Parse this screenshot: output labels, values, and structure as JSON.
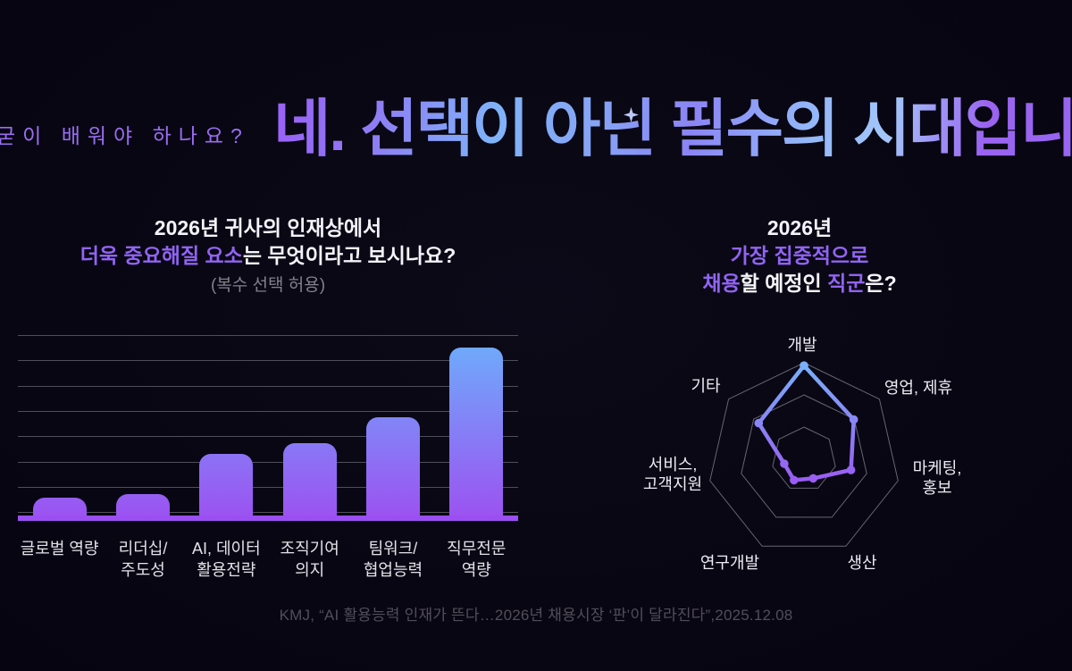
{
  "page": {
    "question": "굳이 배워야 하나요?",
    "title": "네. 선택이 아닌 필수의 시대입니다!",
    "source": "KMJ, “AI 활용능력 인재가 뜬다…2026년 채용시장 ‘판’이 달라진다”,2025.12.08"
  },
  "colors": {
    "accent_purple": "#9164f3",
    "bar_gradient_bottom": "#9c52f1",
    "bar_gradient_top": "#6faafb",
    "baseline": "#9b4ff2",
    "gridline": "#4e4e58",
    "radar_ring": "#666671",
    "radar_line_top": "#78b1f9",
    "radar_line_bottom": "#9a5bf2",
    "title_gradient": [
      "#9b5ff6",
      "#7fb3f9",
      "#8b85f4",
      "#a3c6fa",
      "#9766f0"
    ]
  },
  "bar_section": {
    "title_line1": "2026년 귀사의 인재상에서",
    "title_line2_accent": "더욱 중요해질 요소",
    "title_line2_rest": "는 무엇이라고 보시나요?",
    "subtitle": "(복수 선택 허용)"
  },
  "radar_section": {
    "title_line1": "2026년",
    "title_line2": "가장 집중적으로",
    "title_line3_accent1": "채용",
    "title_line3_mid": "할 예정인 ",
    "title_line3_accent2": "직군",
    "title_line3_end": "은?"
  },
  "chart_data": [
    {
      "type": "bar",
      "title": "2026년 귀사의 인재상에서 더욱 중요해질 요소는 무엇이라고 보시나요?",
      "subtitle": "(복수 선택 허용)",
      "categories": [
        "글로벌 역량",
        "리더십/주도성",
        "AI, 데이터 활용전략",
        "조직기여 의지",
        "팀워크/협업능력",
        "직무전문 역량"
      ],
      "category_lines": [
        [
          "글로벌 역량"
        ],
        [
          "리더십/",
          "주도성"
        ],
        [
          "AI, 데이터",
          "활용전략"
        ],
        [
          "조직기여",
          "의지"
        ],
        [
          "팀워크/",
          "협업능력"
        ],
        [
          "직무전문",
          "역량"
        ]
      ],
      "values": [
        11,
        13,
        35,
        41,
        55,
        93
      ],
      "ylim": [
        0,
        100
      ],
      "grid": true,
      "gridline_count": 8,
      "data_labels_shown": false
    },
    {
      "type": "radar",
      "title": "2026년 가장 집중적으로 채용할 예정인 직군은?",
      "categories": [
        "개발",
        "영업, 제휴",
        "마케팅, 홍보",
        "생산",
        "연구개발",
        "서비스, 고객지원",
        "기타"
      ],
      "category_lines": [
        [
          "개발"
        ],
        [
          "영업, 제휴"
        ],
        [
          "마케팅,",
          "홍보"
        ],
        [
          "생산"
        ],
        [
          "연구개발"
        ],
        [
          "서비스,",
          "고객지원"
        ],
        [
          "기타"
        ]
      ],
      "values": [
        97,
        66,
        50,
        22,
        24,
        21,
        60
      ],
      "rlim": [
        0,
        100
      ],
      "rings": 3,
      "legend": false
    }
  ]
}
